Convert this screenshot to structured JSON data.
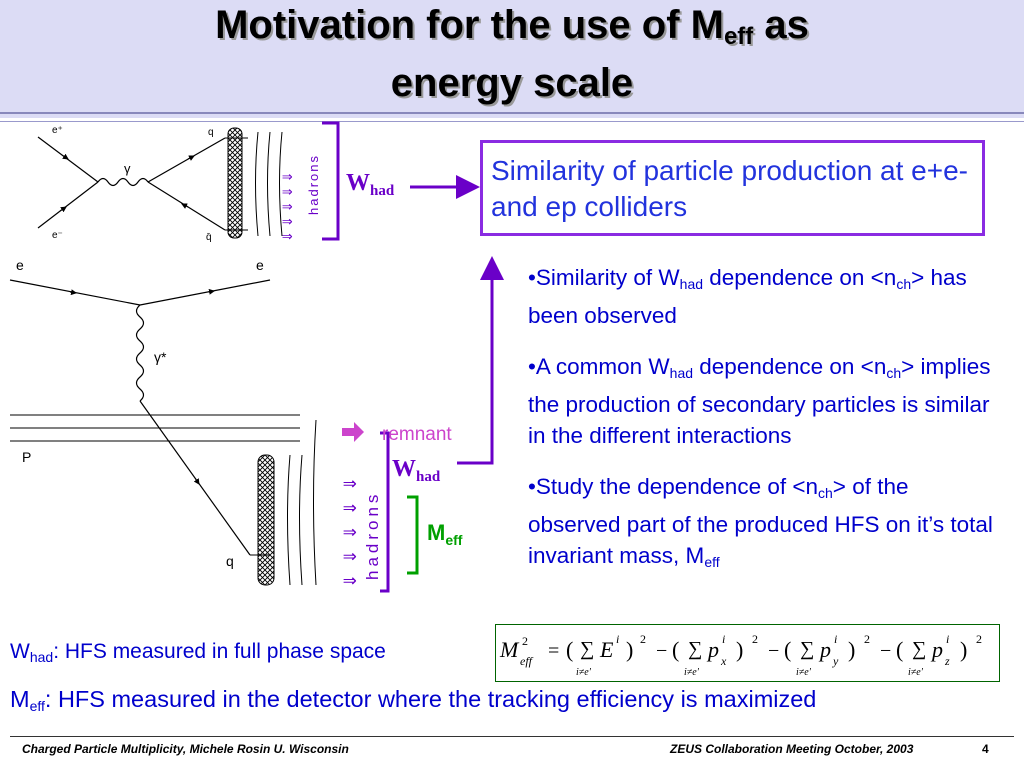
{
  "title": {
    "line1_pre": "Motivation for the use of M",
    "line1_sub": "eff",
    "line1_post": " as",
    "line2": "energy scale"
  },
  "diagram": {
    "epem_e_plus": "e⁺",
    "epem_e_minus": "e⁻",
    "epem_gamma": "γ",
    "epem_q": "q",
    "epem_qbar": "q̄",
    "epem_hadrons": "hadrons",
    "ep_e_in": "e",
    "ep_e_out": "e",
    "ep_gamma": "γ*",
    "ep_p": "P",
    "ep_q": "q",
    "ep_hadrons": "hadrons",
    "remnant": "remnant",
    "arrow_glyphs": "⇓⇓⇓⇓⇓",
    "colors": {
      "whad": "#6a00c8",
      "meff": "#00a000",
      "text": "#0000cc",
      "box": "#8a2be2"
    }
  },
  "labels": {
    "whad_base": "W",
    "whad_sub": "had",
    "meff_base": "M",
    "meff_sub": "eff"
  },
  "similarity_box": "Similarity of particle production at e+e- and ep colliders",
  "bullets": [
    {
      "a": "Similarity of W",
      "sub1": "had",
      "b": " dependence on <n",
      "sub2": "ch",
      "c": "> has been observed"
    },
    {
      "a": "A common W",
      "sub1": "had",
      "b": " dependence on <n",
      "sub2": "ch",
      "c": "> implies the production of secondary particles is similar in the different interactions"
    },
    {
      "a": "Study the dependence of <n",
      "sub1": "ch",
      "b": "> of the observed part of the produced HFS on it’s total invariant mass, M",
      "sub2": "eff",
      "c": ""
    }
  ],
  "whad_def": {
    "base": "W",
    "sub": "had",
    "text": ": HFS measured in full phase space"
  },
  "meff_def": {
    "base": "M",
    "sub": "eff",
    "text": ": HFS measured in the detector where the tracking efficiency is maximized"
  },
  "formula": {
    "lhs": "M",
    "lhs_sup": "2",
    "lhs_sub": "eff",
    "eq": "=",
    "sum": "∑",
    "cond": "i≠e′",
    "t1": "E",
    "t2": "p",
    "t2s": "x",
    "t3": "p",
    "t3s": "y",
    "t4": "p",
    "t4s": "z",
    "idx": "i",
    "sq": "2",
    "minus": "−",
    "open": "(",
    "close": ")"
  },
  "footer": {
    "left": "Charged Particle Multiplicity, Michele Rosin U. Wisconsin",
    "right": "ZEUS Collaboration Meeting October, 2003",
    "page": "4"
  }
}
